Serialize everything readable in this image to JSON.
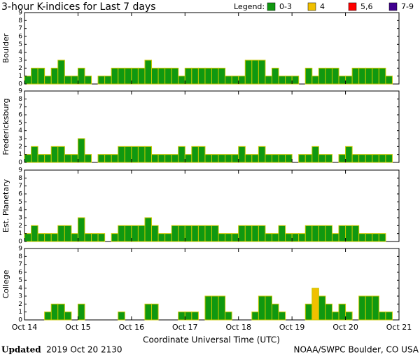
{
  "chart_data": {
    "type": "bar",
    "title": "3-hour K-indices for Last 7 days",
    "legend_title": "Legend:",
    "legend": [
      {
        "label": "0-3",
        "color": "#109810"
      },
      {
        "label": "4",
        "color": "#f0c000"
      },
      {
        "label": "5,6",
        "color": "#ff0000"
      },
      {
        "label": "7-9",
        "color": "#400090"
      }
    ],
    "bar_edge_color": "#c8c800",
    "x_label": "Coordinate Universal Time (UTC)",
    "xlim": [
      0,
      7
    ],
    "xticks": [
      {
        "value": 0,
        "label": "Oct 14"
      },
      {
        "value": 1,
        "label": "Oct 15"
      },
      {
        "value": 2,
        "label": "Oct 16"
      },
      {
        "value": 3,
        "label": "Oct 17"
      },
      {
        "value": 4,
        "label": "Oct 18"
      },
      {
        "value": 5,
        "label": "Oct 19"
      },
      {
        "value": 6,
        "label": "Oct 20"
      },
      {
        "value": 7,
        "label": "Oct 21"
      }
    ],
    "ylim": [
      0,
      9
    ],
    "yticks": [
      0,
      1,
      2,
      3,
      4,
      5,
      6,
      7,
      8,
      9
    ],
    "series": [
      {
        "name": "Boulder",
        "values": [
          1,
          2,
          2,
          1,
          2,
          3,
          1,
          1,
          2,
          1,
          0,
          1,
          1,
          2,
          2,
          2,
          2,
          2,
          3,
          2,
          2,
          2,
          2,
          1,
          2,
          2,
          2,
          2,
          2,
          2,
          1,
          1,
          1,
          3,
          3,
          3,
          1,
          2,
          1,
          1,
          1,
          0,
          2,
          1,
          2,
          2,
          2,
          1,
          1,
          2,
          2,
          2,
          2,
          2,
          1,
          0
        ]
      },
      {
        "name": "Fredericksburg",
        "values": [
          1,
          2,
          1,
          1,
          2,
          2,
          1,
          1,
          3,
          1,
          0,
          1,
          1,
          1,
          2,
          2,
          2,
          2,
          2,
          1,
          1,
          1,
          1,
          2,
          1,
          2,
          2,
          1,
          1,
          1,
          1,
          1,
          2,
          1,
          1,
          2,
          1,
          1,
          1,
          1,
          0,
          1,
          1,
          2,
          1,
          1,
          0,
          1,
          2,
          1,
          1,
          1,
          1,
          1,
          1,
          0
        ]
      },
      {
        "name": "Est. Planetary",
        "values": [
          1,
          2,
          1,
          1,
          1,
          2,
          2,
          1,
          3,
          1,
          1,
          1,
          0,
          1,
          2,
          2,
          2,
          2,
          3,
          2,
          1,
          1,
          2,
          2,
          2,
          2,
          2,
          2,
          2,
          1,
          1,
          1,
          2,
          2,
          2,
          2,
          1,
          1,
          2,
          1,
          1,
          1,
          2,
          2,
          2,
          2,
          1,
          2,
          2,
          2,
          1,
          1,
          1,
          1,
          null,
          null
        ]
      },
      {
        "name": "College",
        "values": [
          0,
          0,
          0,
          1,
          2,
          2,
          1,
          0,
          2,
          0,
          0,
          0,
          0,
          0,
          1,
          0,
          0,
          0,
          2,
          2,
          0,
          0,
          0,
          1,
          1,
          1,
          0,
          3,
          3,
          3,
          1,
          0,
          0,
          0,
          1,
          3,
          3,
          2,
          1,
          0,
          0,
          0,
          2,
          4,
          3,
          2,
          1,
          2,
          1,
          0,
          3,
          3,
          3,
          1,
          1,
          0
        ]
      }
    ],
    "footer_bold": "Updated",
    "footer_left": "2019 Oct 20 2130",
    "footer_right": "NOAA/SWPC Boulder, CO USA"
  }
}
